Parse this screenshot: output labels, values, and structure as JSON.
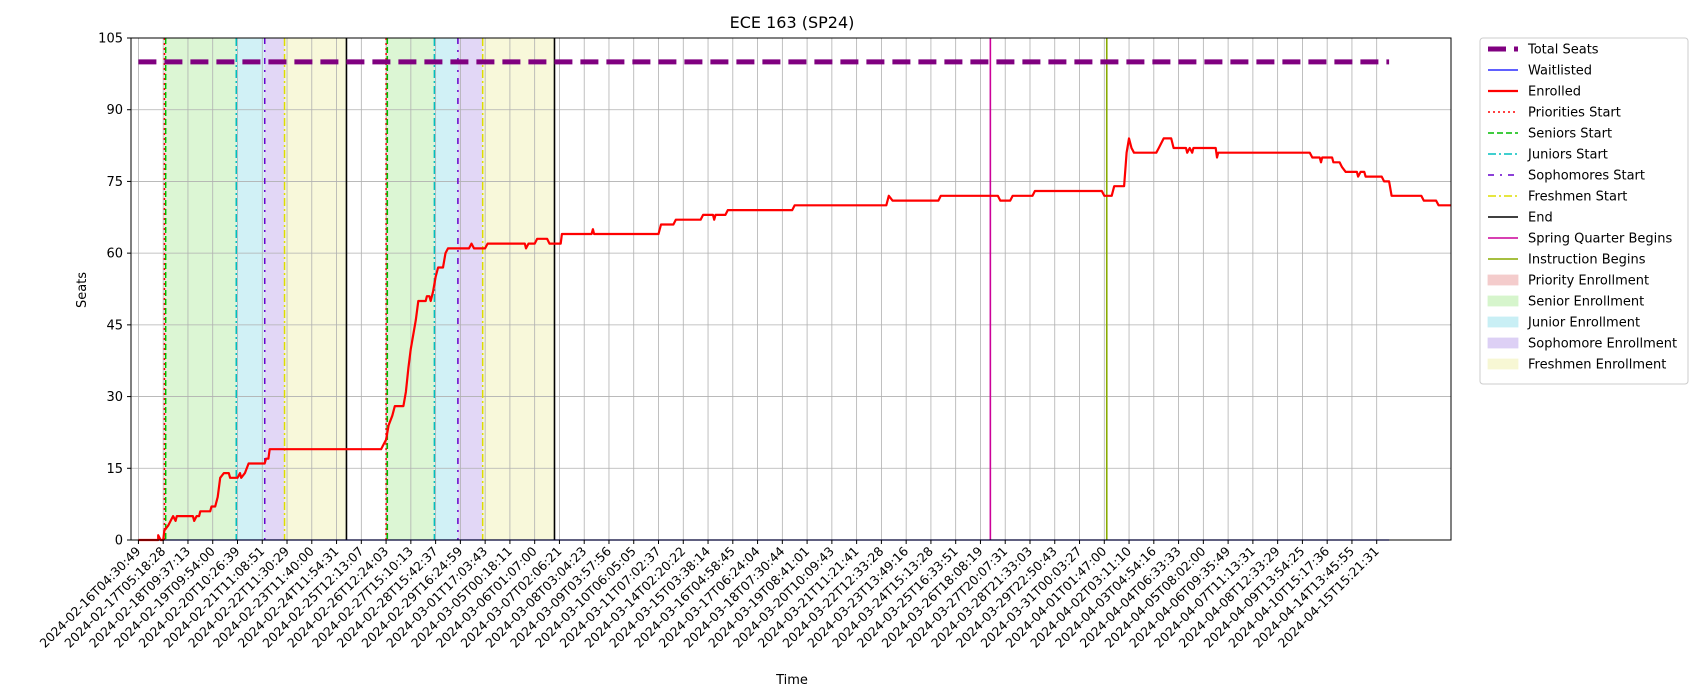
{
  "chart_data": {
    "type": "line",
    "title": "ECE 163 (SP24)",
    "xlabel": "Time",
    "ylabel": "Seats",
    "ylim": [
      0,
      105
    ],
    "yticks": [
      0,
      15,
      30,
      45,
      60,
      75,
      90,
      105
    ],
    "grid": true,
    "legend_position": "outside right, top",
    "x_ticks": [
      "2024-02-16T04:30:49",
      "2024-02-17T05:18:28",
      "2024-02-18T09:37:13",
      "2024-02-19T09:54:00",
      "2024-02-20T10:26:39",
      "2024-02-21T11:08:51",
      "2024-02-22T11:30:29",
      "2024-02-23T11:40:00",
      "2024-02-24T11:54:31",
      "2024-02-25T12:13:07",
      "2024-02-26T12:24:03",
      "2024-02-27T15:10:13",
      "2024-02-28T15:42:37",
      "2024-02-29T16:24:59",
      "2024-03-01T17:03:43",
      "2024-03-05T00:18:11",
      "2024-03-06T01:07:00",
      "2024-03-07T02:06:21",
      "2024-03-08T03:04:23",
      "2024-03-09T03:57:56",
      "2024-03-10T06:05:05",
      "2024-03-11T07:02:37",
      "2024-03-14T02:20:22",
      "2024-03-15T03:38:14",
      "2024-03-16T04:58:45",
      "2024-03-17T06:24:04",
      "2024-03-18T07:30:44",
      "2024-03-19T08:41:01",
      "2024-03-20T10:09:43",
      "2024-03-21T11:21:41",
      "2024-03-22T12:33:28",
      "2024-03-23T13:49:16",
      "2024-03-24T15:13:28",
      "2024-03-25T16:33:51",
      "2024-03-26T18:08:19",
      "2024-03-27T20:07:31",
      "2024-03-28T21:33:03",
      "2024-03-29T22:50:43",
      "2024-03-31T00:03:27",
      "2024-04-01T01:47:00",
      "2024-04-02T03:11:10",
      "2024-04-03T04:54:16",
      "2024-04-04T06:33:33",
      "2024-04-05T08:02:00",
      "2024-04-06T09:35:49",
      "2024-04-07T11:13:31",
      "2024-04-08T12:33:29",
      "2024-04-09T13:54:25",
      "2024-04-10T15:17:36",
      "2024-04-14T13:45:55",
      "2024-04-15T15:21:31"
    ],
    "series": [
      {
        "name": "Total Seats",
        "color": "#800080",
        "style": "dashed-thick",
        "points": [
          [
            0,
            100
          ],
          [
            50.5,
            100
          ]
        ]
      },
      {
        "name": "Waitlisted",
        "color": "#0000ff",
        "style": "solid-thin",
        "points": [
          [
            0,
            0
          ],
          [
            50.5,
            0
          ]
        ]
      },
      {
        "name": "Enrolled",
        "color": "#ff0000",
        "style": "solid-thick",
        "points": [
          [
            0,
            0
          ],
          [
            0.8,
            0
          ],
          [
            0.8,
            1
          ],
          [
            0.9,
            0
          ],
          [
            1.0,
            0
          ],
          [
            1.05,
            2
          ],
          [
            1.2,
            3
          ],
          [
            1.3,
            4
          ],
          [
            1.4,
            5
          ],
          [
            1.5,
            4
          ],
          [
            1.55,
            5
          ],
          [
            2.0,
            5
          ],
          [
            2.2,
            5
          ],
          [
            2.25,
            4
          ],
          [
            2.35,
            5
          ],
          [
            2.45,
            5
          ],
          [
            2.5,
            6
          ],
          [
            2.9,
            6
          ],
          [
            2.95,
            7
          ],
          [
            3.1,
            7
          ],
          [
            3.2,
            9
          ],
          [
            3.3,
            13
          ],
          [
            3.45,
            14
          ],
          [
            3.65,
            14
          ],
          [
            3.7,
            13
          ],
          [
            4.0,
            13
          ],
          [
            4.1,
            14
          ],
          [
            4.15,
            13
          ],
          [
            4.3,
            14
          ],
          [
            4.45,
            16
          ],
          [
            5.1,
            16
          ],
          [
            5.15,
            17
          ],
          [
            5.25,
            17
          ],
          [
            5.3,
            19
          ],
          [
            9.8,
            19
          ],
          [
            9.9,
            20
          ],
          [
            10.0,
            21
          ],
          [
            10.1,
            24
          ],
          [
            10.25,
            26
          ],
          [
            10.35,
            28
          ],
          [
            10.7,
            28
          ],
          [
            10.8,
            31
          ],
          [
            10.9,
            36
          ],
          [
            11.0,
            40
          ],
          [
            11.1,
            43
          ],
          [
            11.2,
            46
          ],
          [
            11.3,
            50
          ],
          [
            11.6,
            50
          ],
          [
            11.65,
            51
          ],
          [
            11.75,
            51
          ],
          [
            11.8,
            50
          ],
          [
            11.9,
            52
          ],
          [
            12.0,
            55
          ],
          [
            12.1,
            57
          ],
          [
            12.3,
            57
          ],
          [
            12.4,
            60
          ],
          [
            12.5,
            61
          ],
          [
            13.0,
            61
          ],
          [
            13.35,
            61
          ],
          [
            13.45,
            62
          ],
          [
            13.55,
            61
          ],
          [
            14.0,
            61
          ],
          [
            14.1,
            62
          ],
          [
            15.6,
            62
          ],
          [
            15.65,
            61
          ],
          [
            15.75,
            62
          ],
          [
            16.0,
            62
          ],
          [
            16.1,
            63
          ],
          [
            16.5,
            63
          ],
          [
            16.6,
            62
          ],
          [
            17.0,
            62
          ],
          [
            17.05,
            62
          ],
          [
            17.1,
            64
          ],
          [
            18.3,
            64
          ],
          [
            18.35,
            65
          ],
          [
            18.4,
            64
          ],
          [
            21.0,
            64
          ],
          [
            21.1,
            66
          ],
          [
            21.6,
            66
          ],
          [
            21.7,
            67
          ],
          [
            22.7,
            67
          ],
          [
            22.8,
            68
          ],
          [
            23.2,
            68
          ],
          [
            23.25,
            67
          ],
          [
            23.3,
            68
          ],
          [
            23.7,
            68
          ],
          [
            23.8,
            69
          ],
          [
            26.4,
            69
          ],
          [
            26.5,
            70
          ],
          [
            30.2,
            70
          ],
          [
            30.3,
            72
          ],
          [
            30.45,
            71
          ],
          [
            32.3,
            71
          ],
          [
            32.4,
            72
          ],
          [
            34.7,
            72
          ],
          [
            34.8,
            71
          ],
          [
            35.2,
            71
          ],
          [
            35.3,
            72
          ],
          [
            36.1,
            72
          ],
          [
            36.2,
            73
          ],
          [
            38.9,
            73
          ],
          [
            39.0,
            72
          ],
          [
            39.3,
            72
          ],
          [
            39.4,
            74
          ],
          [
            39.8,
            74
          ],
          [
            39.9,
            81
          ],
          [
            40.0,
            84
          ],
          [
            40.1,
            82
          ],
          [
            40.2,
            81
          ],
          [
            41.1,
            81
          ],
          [
            41.2,
            82
          ],
          [
            41.4,
            84
          ],
          [
            41.7,
            84
          ],
          [
            41.8,
            82
          ],
          [
            42.3,
            82
          ],
          [
            42.35,
            81
          ],
          [
            42.45,
            82
          ],
          [
            42.55,
            81
          ],
          [
            42.6,
            82
          ],
          [
            43.5,
            82
          ],
          [
            43.55,
            80
          ],
          [
            43.6,
            81
          ],
          [
            47.3,
            81
          ],
          [
            47.4,
            80
          ],
          [
            47.7,
            80
          ],
          [
            47.75,
            79
          ],
          [
            47.8,
            80
          ],
          [
            48.2,
            80
          ],
          [
            48.25,
            79
          ],
          [
            48.5,
            79
          ],
          [
            48.6,
            78
          ],
          [
            48.75,
            77
          ],
          [
            49.2,
            77
          ],
          [
            49.25,
            76
          ],
          [
            49.35,
            77
          ],
          [
            49.5,
            77
          ],
          [
            49.55,
            76
          ],
          [
            50.2,
            76
          ],
          [
            50.3,
            75
          ],
          [
            50.5,
            75
          ],
          [
            50.6,
            72
          ],
          [
            51.8,
            72
          ],
          [
            51.9,
            71
          ],
          [
            52.4,
            71
          ],
          [
            52.5,
            70
          ],
          [
            53.0,
            70
          ]
        ]
      }
    ],
    "vertical_lines": [
      {
        "name": "Priorities Start",
        "color": "#ff0000",
        "style": "dotted",
        "x": [
          1.05,
          10.0
        ]
      },
      {
        "name": "Seniors Start",
        "color": "#00bb00",
        "style": "dashed",
        "x": [
          1.1,
          10.05
        ]
      },
      {
        "name": "Juniors Start",
        "color": "#00bfbf",
        "style": "dashdot",
        "x": [
          3.95,
          11.95
        ]
      },
      {
        "name": "Sophomores Start",
        "color": "#6600cc",
        "style": "dashdotted-sparse",
        "x": [
          5.1,
          12.9
        ]
      },
      {
        "name": "Freshmen Start",
        "color": "#dddd00",
        "style": "dashdot",
        "x": [
          5.9,
          13.9
        ]
      },
      {
        "name": "End",
        "color": "#000000",
        "style": "solid",
        "x": [
          8.4,
          16.8
        ]
      },
      {
        "name": "Spring Quarter Begins",
        "color": "#cc0099",
        "style": "solid",
        "x": [
          34.4
        ]
      },
      {
        "name": "Instruction Begins",
        "color": "#88aa00",
        "style": "solid",
        "x": [
          39.1
        ]
      }
    ],
    "spans": [
      {
        "name": "Priority Enrollment",
        "color": "#f4cccc",
        "ranges": [
          [
            1.05,
            1.1
          ],
          [
            10.0,
            10.05
          ]
        ]
      },
      {
        "name": "Senior Enrollment",
        "color": "#d6f5cc",
        "ranges": [
          [
            1.1,
            3.95
          ],
          [
            10.05,
            11.95
          ]
        ]
      },
      {
        "name": "Junior Enrollment",
        "color": "#c9eff5",
        "ranges": [
          [
            3.95,
            5.1
          ],
          [
            11.95,
            12.9
          ]
        ]
      },
      {
        "name": "Sophomore Enrollment",
        "color": "#ddd0f5",
        "ranges": [
          [
            5.1,
            5.9
          ],
          [
            12.9,
            13.9
          ]
        ]
      },
      {
        "name": "Freshmen Enrollment",
        "color": "#f7f7d4",
        "ranges": [
          [
            5.9,
            8.4
          ],
          [
            13.9,
            16.8
          ]
        ]
      }
    ],
    "legend": [
      {
        "label": "Total Seats",
        "kind": "line",
        "color": "#800080",
        "style": "dashed-thick"
      },
      {
        "label": "Waitlisted",
        "kind": "line",
        "color": "#0000ff",
        "style": "solid-thin"
      },
      {
        "label": "Enrolled",
        "kind": "line",
        "color": "#ff0000",
        "style": "solid-thick"
      },
      {
        "label": "Priorities Start",
        "kind": "line",
        "color": "#ff0000",
        "style": "dotted"
      },
      {
        "label": "Seniors Start",
        "kind": "line",
        "color": "#00bb00",
        "style": "dashed"
      },
      {
        "label": "Juniors Start",
        "kind": "line",
        "color": "#00bfbf",
        "style": "dashdot"
      },
      {
        "label": "Sophomores Start",
        "kind": "line",
        "color": "#6600cc",
        "style": "dashdotted-sparse"
      },
      {
        "label": "Freshmen Start",
        "kind": "line",
        "color": "#dddd00",
        "style": "dashdot"
      },
      {
        "label": "End",
        "kind": "line",
        "color": "#000000",
        "style": "solid"
      },
      {
        "label": "Spring Quarter Begins",
        "kind": "line",
        "color": "#cc0099",
        "style": "solid"
      },
      {
        "label": "Instruction Begins",
        "kind": "line",
        "color": "#88aa00",
        "style": "solid"
      },
      {
        "label": "Priority Enrollment",
        "kind": "patch",
        "color": "#f4cccc"
      },
      {
        "label": "Senior Enrollment",
        "kind": "patch",
        "color": "#d6f5cc"
      },
      {
        "label": "Junior Enrollment",
        "kind": "patch",
        "color": "#c9eff5"
      },
      {
        "label": "Sophomore Enrollment",
        "kind": "patch",
        "color": "#ddd0f5"
      },
      {
        "label": "Freshmen Enrollment",
        "kind": "patch",
        "color": "#f7f7d4"
      }
    ]
  }
}
